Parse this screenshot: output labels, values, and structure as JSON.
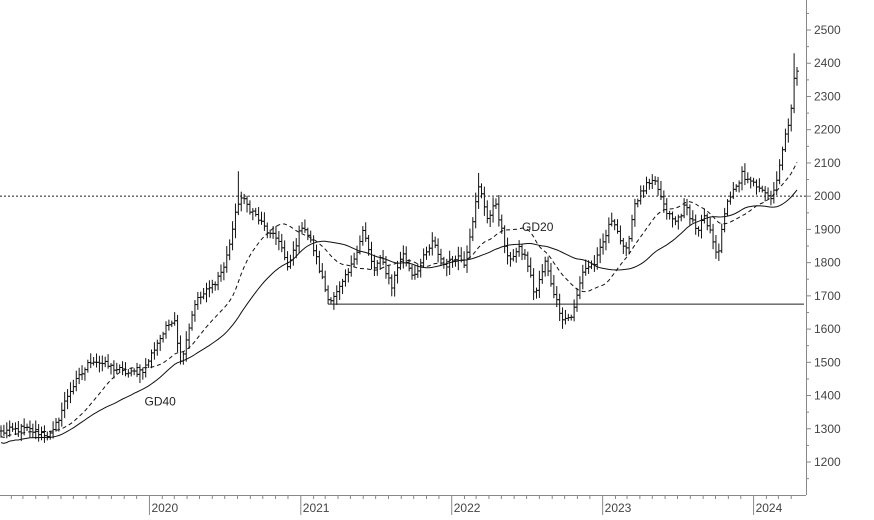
{
  "chart_data": {
    "type": "ohlc",
    "title": "",
    "xlabel": "",
    "ylabel": "",
    "ylim": [
      1100,
      2560
    ],
    "y_ticks": [
      1200,
      1300,
      1400,
      1500,
      1600,
      1700,
      1800,
      1900,
      2000,
      2100,
      2200,
      2300,
      2400,
      2500
    ],
    "x_ticks": [
      {
        "label": "2020",
        "date": "2020-01-01"
      },
      {
        "label": "2021",
        "date": "2021-01-01"
      },
      {
        "label": "2022",
        "date": "2022-01-01"
      },
      {
        "label": "2023",
        "date": "2023-01-01"
      },
      {
        "label": "2024",
        "date": "2024-01-01"
      }
    ],
    "x_start": "2019-01-07",
    "x_end": "2024-04-15",
    "y_axis_position": "right",
    "grid": false,
    "price_anchors": [
      [
        "2019-01-07",
        1290
      ],
      [
        "2019-03-01",
        1300
      ],
      [
        "2019-05-10",
        1280
      ],
      [
        "2019-06-20",
        1410
      ],
      [
        "2019-08-15",
        1510
      ],
      [
        "2019-09-20",
        1490
      ],
      [
        "2019-11-15",
        1465
      ],
      [
        "2019-12-20",
        1480
      ],
      [
        "2020-01-20",
        1560
      ],
      [
        "2020-03-01",
        1640
      ],
      [
        "2020-03-16",
        1500
      ],
      [
        "2020-04-20",
        1680
      ],
      [
        "2020-06-01",
        1730
      ],
      [
        "2020-07-01",
        1790
      ],
      [
        "2020-08-06",
        2000
      ],
      [
        "2020-09-15",
        1940
      ],
      [
        "2020-10-20",
        1880
      ],
      [
        "2020-11-10",
        1870
      ],
      [
        "2020-11-30",
        1780
      ],
      [
        "2021-01-06",
        1920
      ],
      [
        "2021-02-01",
        1840
      ],
      [
        "2021-03-08",
        1690
      ],
      [
        "2021-03-31",
        1710
      ],
      [
        "2021-05-01",
        1780
      ],
      [
        "2021-06-01",
        1900
      ],
      [
        "2021-06-25",
        1780
      ],
      [
        "2021-07-15",
        1810
      ],
      [
        "2021-08-09",
        1730
      ],
      [
        "2021-09-03",
        1830
      ],
      [
        "2021-09-30",
        1760
      ],
      [
        "2021-11-16",
        1860
      ],
      [
        "2021-12-15",
        1790
      ],
      [
        "2022-01-15",
        1820
      ],
      [
        "2022-02-01",
        1800
      ],
      [
        "2022-03-08",
        2030
      ],
      [
        "2022-03-30",
        1930
      ],
      [
        "2022-04-18",
        1980
      ],
      [
        "2022-05-16",
        1810
      ],
      [
        "2022-06-15",
        1840
      ],
      [
        "2022-07-01",
        1810
      ],
      [
        "2022-07-21",
        1700
      ],
      [
        "2022-08-15",
        1800
      ],
      [
        "2022-09-15",
        1670
      ],
      [
        "2022-09-28",
        1630
      ],
      [
        "2022-10-20",
        1640
      ],
      [
        "2022-11-15",
        1780
      ],
      [
        "2022-12-15",
        1800
      ],
      [
        "2023-01-26",
        1940
      ],
      [
        "2023-02-25",
        1820
      ],
      [
        "2023-03-20",
        1980
      ],
      [
        "2023-04-15",
        2030
      ],
      [
        "2023-05-10",
        2040
      ],
      [
        "2023-05-31",
        1960
      ],
      [
        "2023-06-25",
        1920
      ],
      [
        "2023-07-20",
        1970
      ],
      [
        "2023-08-21",
        1890
      ],
      [
        "2023-09-01",
        1940
      ],
      [
        "2023-09-28",
        1860
      ],
      [
        "2023-10-06",
        1820
      ],
      [
        "2023-10-30",
        1990
      ],
      [
        "2023-11-30",
        2040
      ],
      [
        "2023-12-04",
        2070
      ],
      [
        "2023-12-20",
        2040
      ],
      [
        "2024-01-20",
        2030
      ],
      [
        "2024-02-14",
        1990
      ],
      [
        "2024-03-01",
        2080
      ],
      [
        "2024-03-15",
        2160
      ],
      [
        "2024-03-25",
        2220
      ],
      [
        "2024-04-03",
        2290
      ],
      [
        "2024-04-08",
        2360
      ],
      [
        "2024-04-15",
        2370
      ]
    ],
    "high_spikes": [
      {
        "date": "2020-08-06",
        "high": 2075
      },
      {
        "date": "2022-03-08",
        "high": 2070
      },
      {
        "date": "2024-04-08",
        "high": 2430
      },
      {
        "date": "2023-10-06",
        "low": 1805
      }
    ],
    "moving_averages": [
      {
        "name": "GD20",
        "period": 20,
        "style": "dashed"
      },
      {
        "name": "GD40",
        "period": 40,
        "style": "solid"
      }
    ],
    "reference_lines": [
      {
        "y": 2000,
        "style": "dotted",
        "x_from": "2019-01-07",
        "x_to": "2024-04-15"
      },
      {
        "y": 1675,
        "style": "solid",
        "x_from": "2021-03-08",
        "x_to": "2024-04-15"
      }
    ],
    "annotations": [
      {
        "text": "GD40",
        "x": "2019-12-20",
        "y": 1370
      },
      {
        "text": "GD20",
        "x": "2022-06-20",
        "y": 1895
      }
    ]
  }
}
